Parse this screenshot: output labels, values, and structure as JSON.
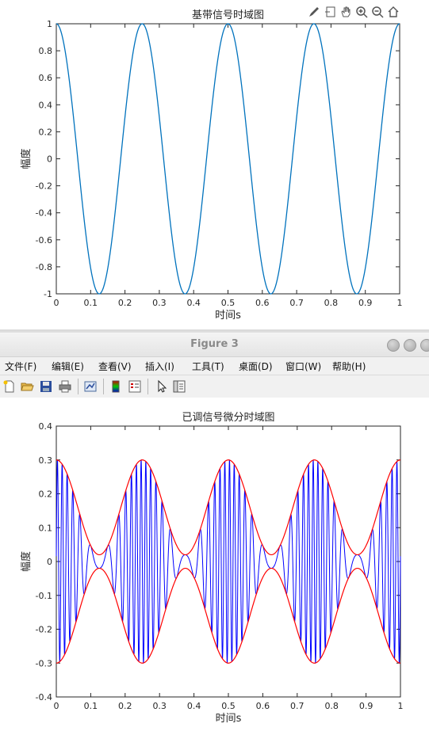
{
  "chart_data": [
    {
      "type": "line",
      "title": "基带信号时域图",
      "xlabel": "时间s",
      "ylabel": "幅度",
      "xlim": [
        0,
        1
      ],
      "ylim": [
        -1,
        1
      ],
      "xticks": [
        "0",
        "0.1",
        "0.2",
        "0.3",
        "0.4",
        "0.5",
        "0.6",
        "0.7",
        "0.8",
        "0.9",
        "1"
      ],
      "yticks": [
        "-1",
        "-0.8",
        "-0.6",
        "-0.4",
        "-0.2",
        "0",
        "0.2",
        "0.4",
        "0.6",
        "0.8",
        "1"
      ],
      "grid": false,
      "series": [
        {
          "description_formula": "y = cos(2π·4·t)",
          "frequency_hz": 4,
          "amplitude": 1,
          "color": "#0072BD"
        }
      ]
    },
    {
      "type": "line",
      "title": "已调信号微分时域图",
      "xlabel": "时间s",
      "ylabel": "幅度",
      "xlim": [
        0,
        1
      ],
      "ylim": [
        -0.4,
        0.4
      ],
      "xticks": [
        "0",
        "0.1",
        "0.2",
        "0.3",
        "0.4",
        "0.5",
        "0.6",
        "0.7",
        "0.8",
        "0.9",
        "1"
      ],
      "yticks": [
        "-0.4",
        "-0.3",
        "-0.2",
        "-0.1",
        "0",
        "0.1",
        "0.2",
        "0.3",
        "0.4"
      ],
      "grid": false,
      "series": [
        {
          "role": "differentiated FM signal",
          "color": "#0000FF",
          "envelope_center": 0.16,
          "envelope_amplitude": 0.14,
          "modulating_frequency_hz": 4
        },
        {
          "role": "upper envelope",
          "color": "#FF0000",
          "values_formula": "0.16 + 0.14·cos(2π·4·t)"
        },
        {
          "role": "lower envelope",
          "color": "#FF0000",
          "values_formula": "-(0.16 + 0.14·cos(2π·4·t))"
        }
      ]
    }
  ],
  "window": {
    "title": "Figure 3",
    "menu": [
      "文件(F)",
      "编辑(E)",
      "查看(V)",
      "插入(I)",
      "工具(T)",
      "桌面(D)",
      "窗口(W)",
      "帮助(H)"
    ]
  },
  "icons": {
    "top_toolbar": [
      "brush-icon",
      "data-cursor-icon",
      "pan-hand-icon",
      "zoom-in-icon",
      "zoom-out-icon",
      "home-icon"
    ],
    "figure_toolbar": [
      "new-figure-icon",
      "open-file-icon",
      "save-icon",
      "print-icon",
      "link-plot-icon",
      "colorbar-icon",
      "legend-icon",
      "edit-arrow-icon",
      "property-editor-icon"
    ]
  },
  "colors": {
    "axis": "#262626",
    "tick_text": "#262626",
    "baseband": "#0072BD",
    "signal": "#0000FF",
    "envelope": "#FF0000"
  }
}
